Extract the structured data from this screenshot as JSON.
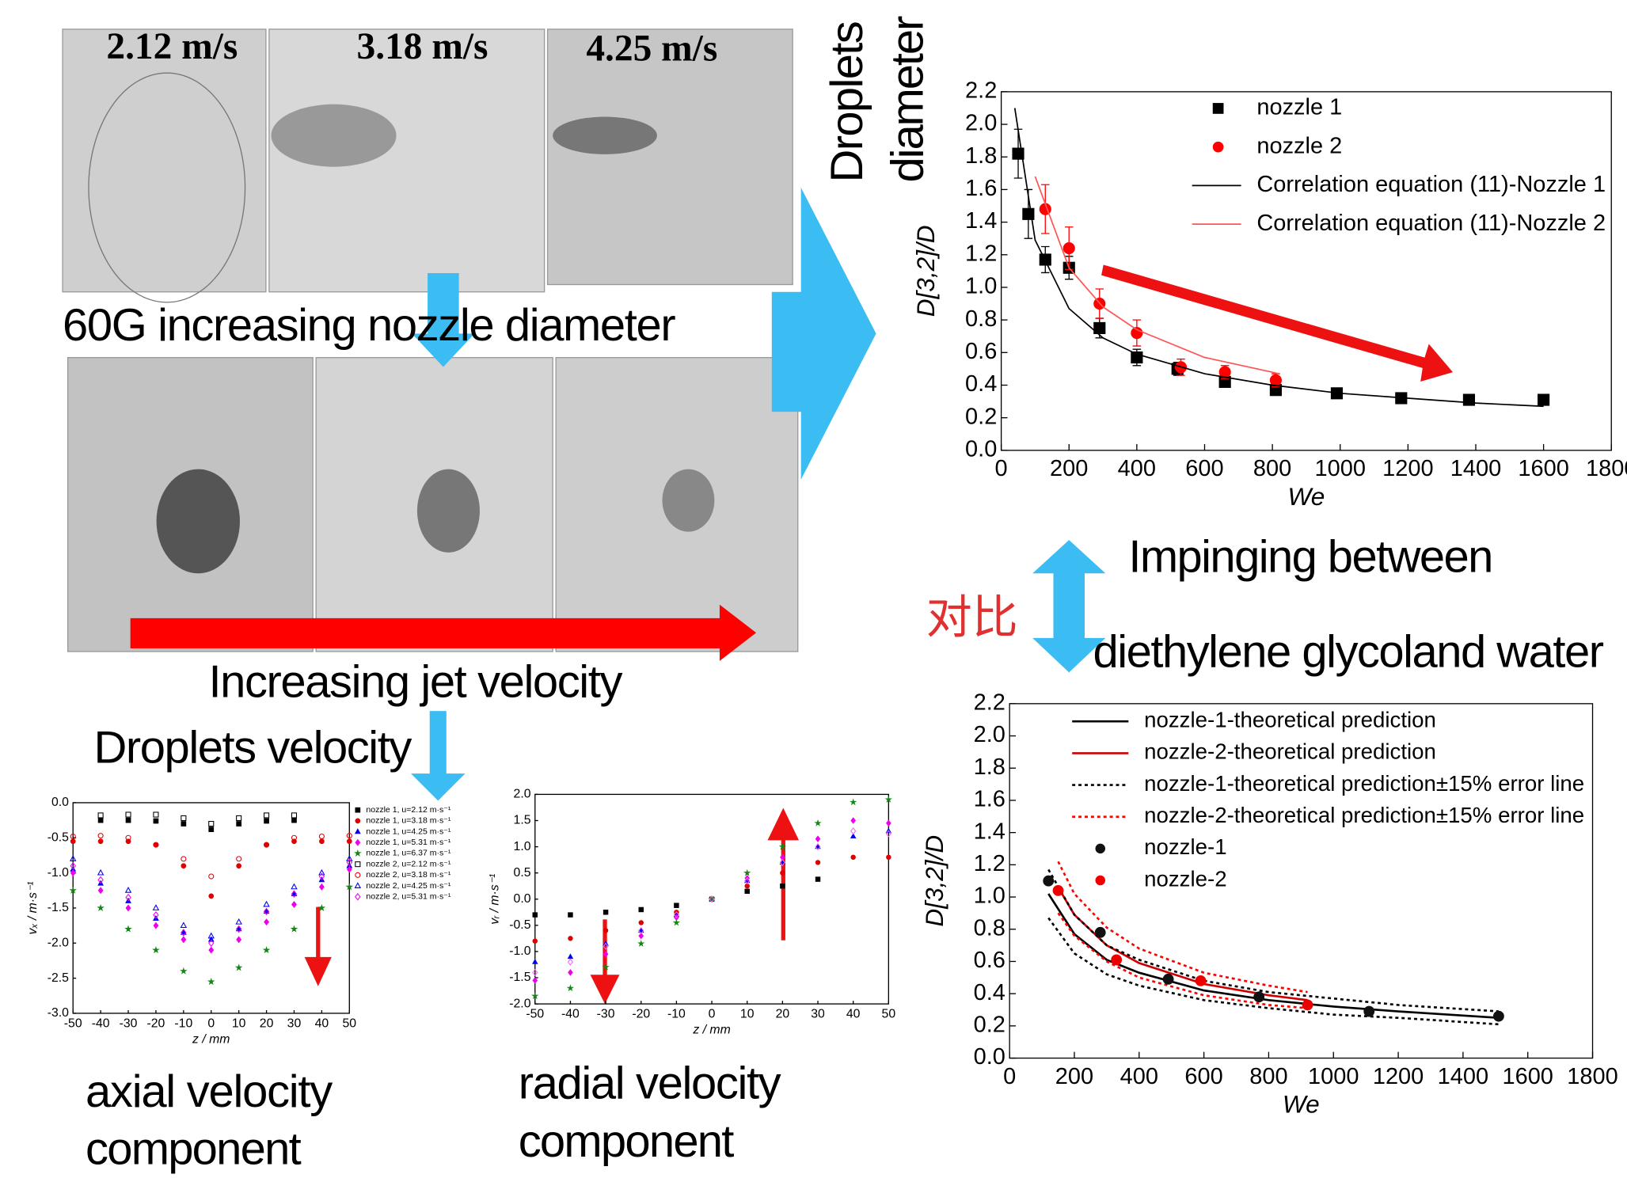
{
  "labels": {
    "speeds": [
      "2.12 m/s",
      "3.18 m/s",
      "4.25 m/s"
    ],
    "nozzle_diameter": "60G increasing nozzle diameter",
    "jet_velocity": "Increasing jet velocity",
    "droplets_velocity": "Droplets velocity",
    "droplets_diameter": [
      "Droplets",
      "diameter"
    ],
    "impinging": [
      "Impinging between",
      "diethylene glycoland water"
    ],
    "compare": "对比",
    "axial": [
      "axial velocity",
      "component"
    ],
    "radial": [
      "radial velocity",
      "component"
    ]
  },
  "chart_data": [
    {
      "type": "scatter",
      "xlabel": "We",
      "ylabel": "D[3,2]/D",
      "xlim": [
        0,
        1800
      ],
      "ylim": [
        0,
        2.2
      ],
      "xticks": [
        0,
        200,
        400,
        600,
        800,
        1000,
        1200,
        1400,
        1600,
        1800
      ],
      "yticks": [
        {
          "value": 0,
          "label": "0.0"
        },
        0.2,
        0.4,
        0.6,
        0.8,
        {
          "value": 1,
          "label": "1.0"
        },
        1.2,
        1.4,
        1.6,
        1.8,
        {
          "value": 2,
          "label": "2.0"
        },
        2.2
      ],
      "series": [
        {
          "name": "nozzle 1",
          "kind": "markers",
          "marker": "square",
          "color": "#000000",
          "x": [
            50,
            80,
            130,
            200,
            290,
            400,
            520,
            660,
            810,
            990,
            1180,
            1380,
            1600
          ],
          "values": [
            1.82,
            1.45,
            1.17,
            1.12,
            0.75,
            0.57,
            0.5,
            0.42,
            0.37,
            0.35,
            0.32,
            0.31,
            0.31
          ],
          "errors": [
            0.15,
            0.15,
            0.08,
            0.07,
            0.06,
            0.05,
            0.04,
            0.03,
            0.03,
            0.02,
            0.02,
            0.02,
            0.02
          ]
        },
        {
          "name": "nozzle 2",
          "kind": "markers",
          "marker": "circle",
          "color": "#ff0000",
          "x": [
            130,
            200,
            290,
            400,
            530,
            660,
            810
          ],
          "values": [
            1.48,
            1.24,
            0.9,
            0.72,
            0.51,
            0.48,
            0.43
          ],
          "errors": [
            0.15,
            0.13,
            0.09,
            0.08,
            0.05,
            0.04,
            0.04
          ]
        },
        {
          "name": "Correlation equation (11)-Nozzle 1",
          "kind": "line",
          "color": "#000000",
          "x": [
            40,
            100,
            200,
            300,
            400,
            600,
            800,
            1000,
            1200,
            1400,
            1600
          ],
          "values": [
            2.1,
            1.29,
            0.87,
            0.69,
            0.59,
            0.47,
            0.4,
            0.35,
            0.32,
            0.29,
            0.27
          ]
        },
        {
          "name": "Correlation equation (11)-Nozzle 2",
          "kind": "line",
          "color": "#ff5555",
          "x": [
            100,
            200,
            300,
            400,
            600,
            820
          ],
          "values": [
            1.68,
            1.12,
            0.88,
            0.74,
            0.57,
            0.47
          ]
        }
      ]
    },
    {
      "type": "scatter",
      "xlabel": "We",
      "ylabel": "D[3,2]/D",
      "xlim": [
        0,
        1800
      ],
      "ylim": [
        0,
        2.2
      ],
      "xticks": [
        0,
        200,
        400,
        600,
        800,
        1000,
        1200,
        1400,
        1600,
        1800
      ],
      "yticks": [
        {
          "value": 0,
          "label": "0.0"
        },
        0.2,
        0.4,
        0.6,
        0.8,
        {
          "value": 1,
          "label": "1.0"
        },
        1.2,
        1.4,
        1.6,
        1.8,
        {
          "value": 2,
          "label": "2.0"
        },
        2.2
      ],
      "series": [
        {
          "name": "nozzle-1-theoretical prediction",
          "kind": "line",
          "color": "#000000",
          "x": [
            120,
            200,
            300,
            400,
            600,
            800,
            1000,
            1200,
            1510
          ],
          "values": [
            1.02,
            0.77,
            0.61,
            0.53,
            0.42,
            0.36,
            0.32,
            0.29,
            0.25
          ]
        },
        {
          "name": "nozzle-2-theoretical prediction",
          "kind": "line",
          "color": "#cc0000",
          "x": [
            150,
            200,
            300,
            400,
            600,
            800,
            920
          ],
          "values": [
            1.06,
            0.89,
            0.7,
            0.59,
            0.46,
            0.39,
            0.36
          ]
        },
        {
          "name": "nozzle-1-theoretical prediction±15% error line",
          "kind": "band-lines",
          "dash": true,
          "color": "#000000",
          "x": [
            120,
            200,
            300,
            400,
            600,
            800,
            1000,
            1200,
            1510
          ],
          "upper": [
            1.17,
            0.89,
            0.7,
            0.61,
            0.48,
            0.41,
            0.37,
            0.33,
            0.29
          ],
          "lower": [
            0.87,
            0.65,
            0.52,
            0.45,
            0.36,
            0.31,
            0.27,
            0.25,
            0.21
          ]
        },
        {
          "name": "nozzle-2-theoretical prediction±15% error line",
          "kind": "band-lines",
          "dash": true,
          "color": "#ff0000",
          "x": [
            150,
            200,
            300,
            400,
            600,
            800,
            920
          ],
          "upper": [
            1.22,
            1.02,
            0.81,
            0.68,
            0.53,
            0.45,
            0.41
          ],
          "lower": [
            0.9,
            0.76,
            0.6,
            0.5,
            0.39,
            0.33,
            0.31
          ]
        },
        {
          "name": "nozzle-1",
          "kind": "markers",
          "marker": "circle",
          "color": "#111111",
          "x": [
            120,
            280,
            490,
            770,
            1110,
            1510
          ],
          "values": [
            1.1,
            0.78,
            0.49,
            0.38,
            0.29,
            0.26
          ]
        },
        {
          "name": "nozzle-2",
          "kind": "markers",
          "marker": "circle",
          "color": "#ee0000",
          "x": [
            150,
            330,
            590,
            920
          ],
          "values": [
            1.04,
            0.61,
            0.48,
            0.33
          ]
        }
      ]
    },
    {
      "type": "scatter",
      "xlabel": "z / mm",
      "ylabel": "vₓ / m·s⁻¹",
      "xlim": [
        -50,
        50
      ],
      "ylim": [
        -3,
        0
      ],
      "xticks": [
        -50,
        -40,
        -30,
        -20,
        -10,
        0,
        10,
        20,
        30,
        40,
        50
      ],
      "yticks": [
        {
          "value": 0,
          "label": "0.0"
        },
        -0.5,
        {
          "value": -1,
          "label": "-1.0"
        },
        -1.5,
        {
          "value": -2,
          "label": "-2.0"
        },
        -2.5,
        {
          "value": -3,
          "label": "-3.0"
        }
      ],
      "x": [
        -50,
        -40,
        -30,
        -20,
        -10,
        0,
        10,
        20,
        30,
        40,
        50
      ],
      "series": [
        {
          "name": "nozzle 1, u=2.12 m·s⁻¹",
          "kind": "markers",
          "marker": "square",
          "color": "#000000",
          "values": [
            null,
            -0.25,
            -0.25,
            -0.26,
            -0.3,
            -0.38,
            -0.3,
            -0.26,
            -0.25,
            null,
            null
          ]
        },
        {
          "name": "nozzle 1, u=3.18 m·s⁻¹",
          "kind": "markers",
          "marker": "circle",
          "color": "#e00000",
          "values": [
            -0.55,
            -0.55,
            -0.55,
            -0.6,
            -0.9,
            -1.33,
            -0.9,
            -0.6,
            -0.55,
            -0.55,
            -0.55
          ]
        },
        {
          "name": "nozzle 1, u=4.25 m·s⁻¹",
          "kind": "markers",
          "marker": "triangle",
          "color": "#0000ee",
          "values": [
            -0.95,
            -1.15,
            -1.4,
            -1.65,
            -1.85,
            -1.95,
            -1.8,
            -1.55,
            -1.3,
            -1.1,
            -0.9
          ]
        },
        {
          "name": "nozzle 1, u=5.31 m·s⁻¹",
          "kind": "markers",
          "marker": "diamond",
          "color": "#ee00ee",
          "values": [
            -1.0,
            -1.25,
            -1.5,
            -1.75,
            -1.95,
            -2.1,
            -1.95,
            -1.7,
            -1.45,
            -1.2,
            -0.95
          ]
        },
        {
          "name": "nozzle 1, u=6.37 m·s⁻¹",
          "kind": "markers",
          "marker": "star",
          "color": "#118811",
          "values": [
            -1.25,
            -1.5,
            -1.8,
            -2.1,
            -2.4,
            -2.55,
            -2.35,
            -2.1,
            -1.8,
            -1.5,
            -1.2
          ]
        },
        {
          "name": "nozzle 2, u=2.12 m·s⁻¹",
          "kind": "markers",
          "marker": "square",
          "open": true,
          "color": "#000000",
          "values": [
            null,
            -0.18,
            -0.17,
            -0.17,
            -0.22,
            -0.3,
            -0.22,
            -0.18,
            -0.18,
            null,
            null
          ]
        },
        {
          "name": "nozzle 2, u=3.18 m·s⁻¹",
          "kind": "markers",
          "marker": "circle",
          "open": true,
          "color": "#e00000",
          "values": [
            -0.48,
            -0.47,
            -0.5,
            -0.6,
            -0.8,
            -1.05,
            -0.8,
            -0.6,
            -0.5,
            -0.48,
            -0.47
          ]
        },
        {
          "name": "nozzle 2, u=4.25 m·s⁻¹",
          "kind": "markers",
          "marker": "triangle",
          "open": true,
          "color": "#0000ee",
          "values": [
            -0.8,
            -1.0,
            -1.25,
            -1.5,
            -1.75,
            -1.9,
            -1.7,
            -1.45,
            -1.2,
            -1.0,
            -0.8
          ]
        },
        {
          "name": "nozzle 2, u=5.31 m·s⁻¹",
          "kind": "markers",
          "marker": "diamond",
          "open": true,
          "color": "#ee00ee",
          "values": [
            -0.9,
            -1.1,
            -1.35,
            -1.6,
            -1.85,
            -2.0,
            -1.8,
            -1.55,
            -1.3,
            -1.05,
            -0.85
          ]
        }
      ]
    },
    {
      "type": "scatter",
      "xlabel": "z / mm",
      "ylabel": "vᵣ / m·s⁻¹",
      "xlim": [
        -50,
        50
      ],
      "ylim": [
        -2,
        2
      ],
      "xticks": [
        -50,
        -40,
        -30,
        -20,
        -10,
        0,
        10,
        20,
        30,
        40,
        50
      ],
      "yticks": [
        {
          "value": -2,
          "label": "-2.0"
        },
        -1.5,
        {
          "value": -1,
          "label": "-1.0"
        },
        -0.5,
        {
          "value": 0,
          "label": "0.0"
        },
        0.5,
        {
          "value": 1,
          "label": "1.0"
        },
        1.5,
        {
          "value": 2,
          "label": "2.0"
        }
      ],
      "x": [
        -50,
        -40,
        -30,
        -20,
        -10,
        0,
        10,
        20,
        30,
        40,
        50
      ],
      "series": [
        {
          "kind": "markers",
          "marker": "square",
          "color": "#000000",
          "values": [
            -0.3,
            -0.3,
            -0.25,
            -0.2,
            -0.12,
            0.0,
            0.15,
            0.25,
            0.38,
            null,
            null
          ]
        },
        {
          "kind": "markers",
          "marker": "circle",
          "color": "#e00000",
          "values": [
            -0.8,
            -0.75,
            -0.6,
            -0.45,
            -0.25,
            0.0,
            0.25,
            0.5,
            0.7,
            0.8,
            0.8
          ]
        },
        {
          "kind": "markers",
          "marker": "triangle",
          "color": "#0000ee",
          "values": [
            -1.2,
            -1.1,
            -0.85,
            -0.6,
            -0.3,
            0.0,
            0.35,
            0.7,
            1.0,
            1.2,
            1.3
          ]
        },
        {
          "kind": "markers",
          "marker": "diamond",
          "color": "#ee00ee",
          "values": [
            -1.55,
            -1.4,
            -1.05,
            -0.7,
            -0.35,
            0.0,
            0.4,
            0.8,
            1.15,
            1.5,
            1.45
          ]
        },
        {
          "kind": "markers",
          "marker": "star",
          "color": "#118811",
          "values": [
            -1.85,
            -1.7,
            -1.3,
            -0.85,
            -0.45,
            0.0,
            0.5,
            1.0,
            1.45,
            1.85,
            1.9
          ]
        },
        {
          "kind": "markers",
          "marker": "diamond",
          "open": true,
          "color": "#ee66ee",
          "values": [
            -1.4,
            -1.2,
            -0.9,
            -0.6,
            -0.3,
            0.0,
            0.35,
            0.7,
            1.0,
            1.3,
            1.25
          ]
        }
      ]
    }
  ]
}
